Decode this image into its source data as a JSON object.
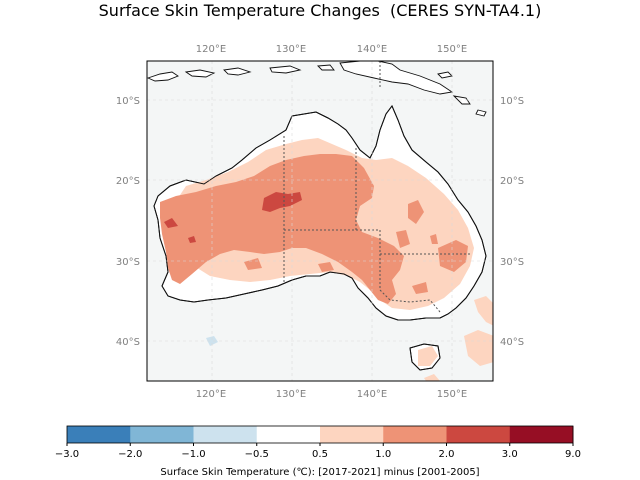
{
  "title": "Surface Skin Temperature Changes  (CERES SYN-TA4.1)",
  "map": {
    "lon_ticks": [
      "120°E",
      "130°E",
      "140°E",
      "150°E"
    ],
    "lat_ticks": [
      "10°S",
      "20°S",
      "30°S",
      "40°S"
    ],
    "lon_range": [
      112,
      155
    ],
    "lat_range": [
      -45,
      -5
    ]
  },
  "colorbar": {
    "label": "Surface Skin Temperature (℃): [2017-2021] minus [2001-2005]",
    "tick_labels": [
      "−3.0",
      "−2.0",
      "−1.0",
      "−0.5",
      "0.5",
      "1.0",
      "2.0",
      "3.0",
      "9.0"
    ],
    "bins": [
      {
        "from": -3.0,
        "to": -2.0,
        "color": "#3a7fb9"
      },
      {
        "from": -2.0,
        "to": -1.0,
        "color": "#80b6d6"
      },
      {
        "from": -1.0,
        "to": -0.5,
        "color": "#cde2ee"
      },
      {
        "from": -0.5,
        "to": 0.5,
        "color": "#ffffff"
      },
      {
        "from": 0.5,
        "to": 1.0,
        "color": "#fdd5c0"
      },
      {
        "from": 1.0,
        "to": 2.0,
        "color": "#ee9376"
      },
      {
        "from": 2.0,
        "to": 3.0,
        "color": "#cc4840"
      },
      {
        "from": 3.0,
        "to": 9.0,
        "color": "#960e24"
      }
    ]
  },
  "colors": {
    "ocean": "#f4f6f6",
    "coast": "#111111",
    "border": "#555555",
    "gridline": "#d9d9d9"
  }
}
